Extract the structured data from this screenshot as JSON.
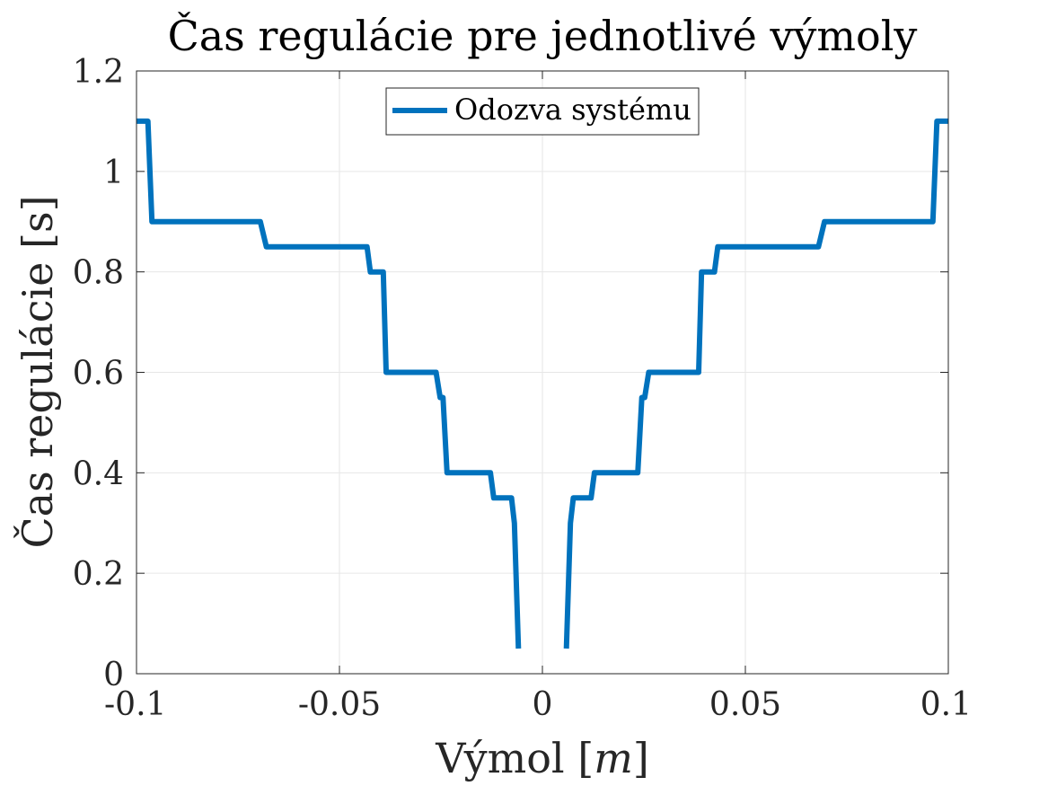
{
  "chart_data": {
    "type": "line",
    "title": "Čas regulácie pre jednotlivé výmoly",
    "xlabel": "Výmol [m]",
    "xlabel_parts": {
      "text": "Výmol ",
      "bracket_open": "[",
      "variable": "m",
      "bracket_close": "]"
    },
    "ylabel": "Čas regulácie [s]",
    "xlim": [
      -0.1,
      0.1
    ],
    "ylim": [
      0,
      1.2
    ],
    "xticks": [
      -0.1,
      -0.05,
      0,
      0.05,
      0.1
    ],
    "xtick_labels": [
      "-0.1",
      "-0.05",
      "0",
      "0.05",
      "0.1"
    ],
    "yticks": [
      0,
      0.2,
      0.4,
      0.6,
      0.8,
      1.0,
      1.2
    ],
    "ytick_labels": [
      "0",
      "0.2",
      "0.4",
      "0.6",
      "0.8",
      "1",
      "1.2"
    ],
    "grid": true,
    "legend_placement": "top-center",
    "series": [
      {
        "name": "Odozva systému",
        "color": "#0072BD",
        "segments": [
          {
            "x": [
              -0.1,
              -0.0972,
              -0.0962,
              -0.0695,
              -0.068,
              -0.0432,
              -0.0424,
              -0.0392,
              -0.0385,
              -0.0262,
              -0.0252,
              -0.0245,
              -0.0235,
              -0.0128,
              -0.012,
              -0.0076,
              -0.0069,
              -0.0059
            ],
            "y": [
              1.1,
              1.1,
              0.9,
              0.9,
              0.85,
              0.85,
              0.8,
              0.8,
              0.6,
              0.6,
              0.55,
              0.55,
              0.4,
              0.4,
              0.35,
              0.35,
              0.3,
              0.05
            ]
          },
          {
            "x": [
              0.0059,
              0.0069,
              0.0076,
              0.012,
              0.0128,
              0.0235,
              0.0245,
              0.0252,
              0.0262,
              0.0385,
              0.0392,
              0.0424,
              0.0432,
              0.068,
              0.0695,
              0.0962,
              0.0972,
              0.1
            ],
            "y": [
              0.05,
              0.3,
              0.35,
              0.35,
              0.4,
              0.4,
              0.55,
              0.55,
              0.6,
              0.6,
              0.8,
              0.8,
              0.85,
              0.85,
              0.9,
              0.9,
              1.1,
              1.1
            ]
          }
        ]
      }
    ]
  }
}
